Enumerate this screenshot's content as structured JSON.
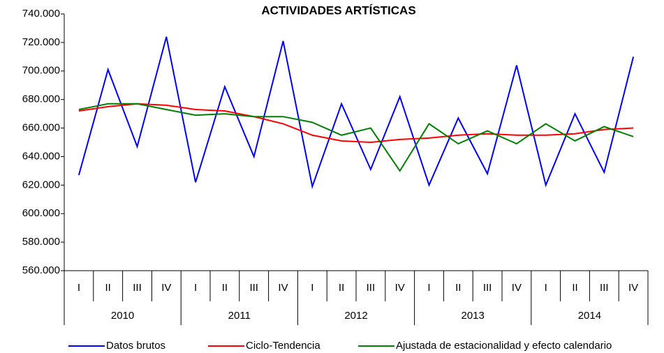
{
  "chart_data": {
    "type": "line",
    "title": "ACTIVIDADES ARTÍSTICAS",
    "categories": [
      "I",
      "II",
      "III",
      "IV",
      "I",
      "II",
      "III",
      "IV",
      "I",
      "II",
      "III",
      "IV",
      "I",
      "II",
      "III",
      "IV",
      "I",
      "II",
      "III",
      "IV"
    ],
    "category_groups": [
      "2010",
      "2011",
      "2012",
      "2013",
      "2014"
    ],
    "series": [
      {
        "name": "Datos brutos",
        "color": "#0000ff",
        "values": [
          627000,
          701000,
          647000,
          724000,
          622000,
          689000,
          640000,
          721000,
          619000,
          677000,
          631000,
          682000,
          620000,
          667000,
          628000,
          704000,
          620000,
          670000,
          629000,
          710000
        ]
      },
      {
        "name": "Ciclo-Tendencia",
        "color": "#ff0000",
        "values": [
          672000,
          675000,
          677000,
          676000,
          673000,
          672000,
          668000,
          663000,
          655000,
          651000,
          650000,
          652000,
          653000,
          655000,
          656000,
          655000,
          655000,
          656000,
          659000,
          660000
        ]
      },
      {
        "name": "Ajustada de estacionalidad y efecto calendario",
        "color": "#008000",
        "values": [
          673000,
          677000,
          677000,
          673000,
          669000,
          670000,
          668000,
          668000,
          664000,
          655000,
          660000,
          630000,
          663000,
          649000,
          658000,
          649000,
          663000,
          651000,
          661000,
          654000
        ]
      }
    ],
    "ylim": [
      560000,
      740000
    ],
    "yticks": [
      {
        "value": 560000,
        "label": "560.000"
      },
      {
        "value": 580000,
        "label": "580.000"
      },
      {
        "value": 600000,
        "label": "600.000"
      },
      {
        "value": 620000,
        "label": "620.000"
      },
      {
        "value": 640000,
        "label": "640.000"
      },
      {
        "value": 660000,
        "label": "660.000"
      },
      {
        "value": 680000,
        "label": "680.000"
      },
      {
        "value": 700000,
        "label": "700.000"
      },
      {
        "value": 720000,
        "label": "720.000"
      },
      {
        "value": 740000,
        "label": "740.000"
      }
    ],
    "grid": false,
    "legend": "bottom"
  }
}
